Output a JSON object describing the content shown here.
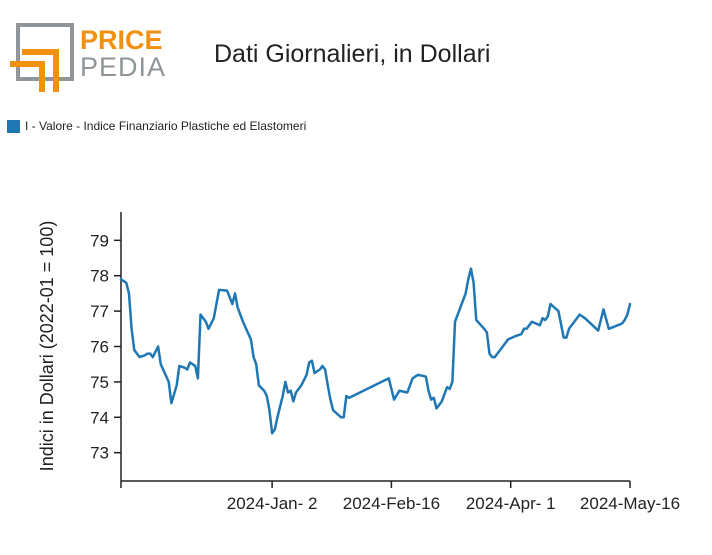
{
  "brand": {
    "word1": "PRICE",
    "word2": "PEDIA",
    "accent": "#f29111",
    "gray": "#8f9598"
  },
  "header": {
    "title": "Dati Giornalieri, in Dollari"
  },
  "colors": {
    "series": "#1f77b4",
    "axis": "#222222"
  },
  "chart_data": {
    "type": "line",
    "title": "Dati Giornalieri, in Dollari",
    "xlabel": "",
    "ylabel": "Indici in Dollari (2022-01 = 100)",
    "ylim": [
      72.2,
      79.8
    ],
    "xlim": [
      "2023-11-06",
      "2024-05-16"
    ],
    "y_ticks": [
      73,
      74,
      75,
      76,
      77,
      78,
      79
    ],
    "x_ticks": [
      {
        "date": "2024-01-02",
        "label": "2024-Jan- 2"
      },
      {
        "date": "2024-02-16",
        "label": "2024-Feb-16"
      },
      {
        "date": "2024-04-01",
        "label": "2024-Apr- 1"
      },
      {
        "date": "2024-05-16",
        "label": "2024-May-16"
      }
    ],
    "legend_position": "top-left",
    "grid": false,
    "series": [
      {
        "name": "I - Valore - Indice Finanziario Plastiche ed Elastomeri",
        "color": "#1f77b4",
        "points": [
          [
            "2023-11-06",
            77.9
          ],
          [
            "2023-11-08",
            77.8
          ],
          [
            "2023-11-09",
            77.5
          ],
          [
            "2023-11-10",
            76.5
          ],
          [
            "2023-11-11",
            75.9
          ],
          [
            "2023-11-13",
            75.7
          ],
          [
            "2023-11-15",
            75.75
          ],
          [
            "2023-11-16",
            75.8
          ],
          [
            "2023-11-17",
            75.8
          ],
          [
            "2023-11-18",
            75.7
          ],
          [
            "2023-11-20",
            76.0
          ],
          [
            "2023-11-21",
            75.5
          ],
          [
            "2023-11-24",
            75.0
          ],
          [
            "2023-11-25",
            74.4
          ],
          [
            "2023-11-27",
            74.9
          ],
          [
            "2023-11-28",
            75.45
          ],
          [
            "2023-11-30",
            75.4
          ],
          [
            "2023-12-01",
            75.35
          ],
          [
            "2023-12-02",
            75.55
          ],
          [
            "2023-12-04",
            75.45
          ],
          [
            "2023-12-05",
            75.1
          ],
          [
            "2023-12-06",
            76.9
          ],
          [
            "2023-12-08",
            76.7
          ],
          [
            "2023-12-09",
            76.5
          ],
          [
            "2023-12-11",
            76.8
          ],
          [
            "2023-12-12",
            77.2
          ],
          [
            "2023-12-13",
            77.6
          ],
          [
            "2023-12-16",
            77.58
          ],
          [
            "2023-12-18",
            77.2
          ],
          [
            "2023-12-19",
            77.5
          ],
          [
            "2023-12-20",
            77.1
          ],
          [
            "2023-12-22",
            76.7
          ],
          [
            "2023-12-25",
            76.2
          ],
          [
            "2023-12-26",
            75.7
          ],
          [
            "2023-12-27",
            75.5
          ],
          [
            "2023-12-28",
            74.9
          ],
          [
            "2023-12-30",
            74.75
          ],
          [
            "2023-12-31",
            74.6
          ],
          [
            "2024-01-01",
            74.2
          ],
          [
            "2024-01-02",
            73.55
          ],
          [
            "2024-01-03",
            73.65
          ],
          [
            "2024-01-04",
            74.0
          ],
          [
            "2024-01-06",
            74.6
          ],
          [
            "2024-01-07",
            75.0
          ],
          [
            "2024-01-08",
            74.7
          ],
          [
            "2024-01-09",
            74.75
          ],
          [
            "2024-01-10",
            74.45
          ],
          [
            "2024-01-11",
            74.7
          ],
          [
            "2024-01-13",
            74.9
          ],
          [
            "2024-01-15",
            75.2
          ],
          [
            "2024-01-16",
            75.55
          ],
          [
            "2024-01-17",
            75.6
          ],
          [
            "2024-01-18",
            75.25
          ],
          [
            "2024-01-20",
            75.35
          ],
          [
            "2024-01-21",
            75.45
          ],
          [
            "2024-01-22",
            75.35
          ],
          [
            "2024-01-23",
            74.9
          ],
          [
            "2024-01-24",
            74.5
          ],
          [
            "2024-01-25",
            74.2
          ],
          [
            "2024-01-28",
            74.0
          ],
          [
            "2024-01-29",
            74.0
          ],
          [
            "2024-01-30",
            74.6
          ],
          [
            "2024-01-31",
            74.55
          ],
          [
            "2024-02-15",
            75.1
          ],
          [
            "2024-02-17",
            74.5
          ],
          [
            "2024-02-19",
            74.75
          ],
          [
            "2024-02-22",
            74.7
          ],
          [
            "2024-02-24",
            75.1
          ],
          [
            "2024-02-26",
            75.2
          ],
          [
            "2024-02-29",
            75.15
          ],
          [
            "2024-03-01",
            74.75
          ],
          [
            "2024-03-02",
            74.5
          ],
          [
            "2024-03-03",
            74.55
          ],
          [
            "2024-03-04",
            74.25
          ],
          [
            "2024-03-06",
            74.45
          ],
          [
            "2024-03-08",
            74.85
          ],
          [
            "2024-03-09",
            74.8
          ],
          [
            "2024-03-10",
            75.0
          ],
          [
            "2024-03-11",
            76.7
          ],
          [
            "2024-03-13",
            77.1
          ],
          [
            "2024-03-15",
            77.5
          ],
          [
            "2024-03-16",
            77.9
          ],
          [
            "2024-03-17",
            78.2
          ],
          [
            "2024-03-18",
            77.8
          ],
          [
            "2024-03-19",
            76.75
          ],
          [
            "2024-03-22",
            76.5
          ],
          [
            "2024-03-23",
            76.4
          ],
          [
            "2024-03-24",
            75.8
          ],
          [
            "2024-03-25",
            75.7
          ],
          [
            "2024-03-26",
            75.7
          ],
          [
            "2024-03-30",
            76.1
          ],
          [
            "2024-03-31",
            76.2
          ],
          [
            "2024-04-03",
            76.3
          ],
          [
            "2024-04-05",
            76.35
          ],
          [
            "2024-04-06",
            76.5
          ],
          [
            "2024-04-07",
            76.5
          ],
          [
            "2024-04-09",
            76.7
          ],
          [
            "2024-04-12",
            76.6
          ],
          [
            "2024-04-13",
            76.8
          ],
          [
            "2024-04-14",
            76.75
          ],
          [
            "2024-04-15",
            76.85
          ],
          [
            "2024-04-16",
            77.2
          ],
          [
            "2024-04-19",
            77.0
          ],
          [
            "2024-04-21",
            76.25
          ],
          [
            "2024-04-22",
            76.25
          ],
          [
            "2024-04-23",
            76.5
          ],
          [
            "2024-04-27",
            76.9
          ],
          [
            "2024-04-29",
            76.8
          ],
          [
            "2024-05-04",
            76.45
          ],
          [
            "2024-05-06",
            77.05
          ],
          [
            "2024-05-08",
            76.5
          ],
          [
            "2024-05-13",
            76.65
          ],
          [
            "2024-05-14",
            76.75
          ],
          [
            "2024-05-15",
            76.9
          ],
          [
            "2024-05-16",
            77.2
          ]
        ]
      }
    ]
  }
}
